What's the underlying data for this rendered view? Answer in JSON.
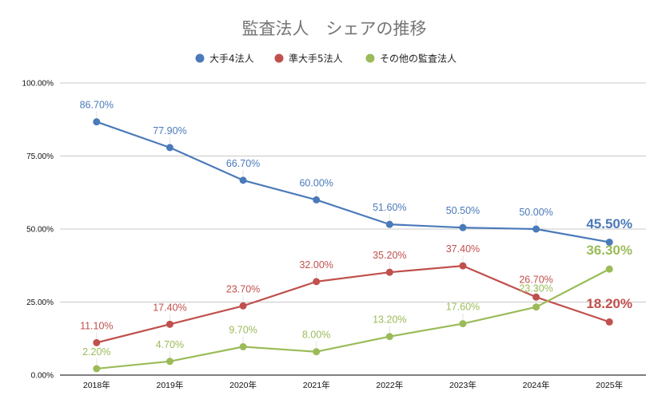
{
  "chart_data": {
    "type": "line",
    "title": "監査法人　シェアの推移",
    "xlabel": "",
    "ylabel": "",
    "categories": [
      "2018年",
      "2019年",
      "2020年",
      "2021年",
      "2022年",
      "2023年",
      "2024年",
      "2025年"
    ],
    "ylim": [
      0,
      100
    ],
    "yticks": [
      0,
      25,
      50,
      75,
      100
    ],
    "ytick_labels": [
      "0.00%",
      "25.00%",
      "50.00%",
      "75.00%",
      "100.00%"
    ],
    "grid": true,
    "legend_position": "top-center",
    "series": [
      {
        "name": "大手4法人",
        "color": "#4a7ab9",
        "values": [
          86.7,
          77.9,
          66.7,
          60.0,
          51.6,
          50.5,
          50.0,
          45.5
        ],
        "labels": [
          "86.70%",
          "77.90%",
          "66.70%",
          "60.00%",
          "51.60%",
          "50.50%",
          "50.00%",
          "45.50%"
        ]
      },
      {
        "name": "準大手5法人",
        "color": "#c0504d",
        "values": [
          11.1,
          17.4,
          23.7,
          32.0,
          35.2,
          37.4,
          26.7,
          18.2
        ],
        "labels": [
          "11.10%",
          "17.40%",
          "23.70%",
          "32.00%",
          "35.20%",
          "37.40%",
          "26.70%",
          "18.20%"
        ]
      },
      {
        "name": "その他の監査法人",
        "color": "#9bbb59",
        "values": [
          2.2,
          4.7,
          9.7,
          8.0,
          13.2,
          17.6,
          23.3,
          36.3
        ],
        "labels": [
          "2.20%",
          "4.70%",
          "9.70%",
          "8.00%",
          "13.20%",
          "17.60%",
          "23.30%",
          "36.30%"
        ]
      }
    ]
  }
}
